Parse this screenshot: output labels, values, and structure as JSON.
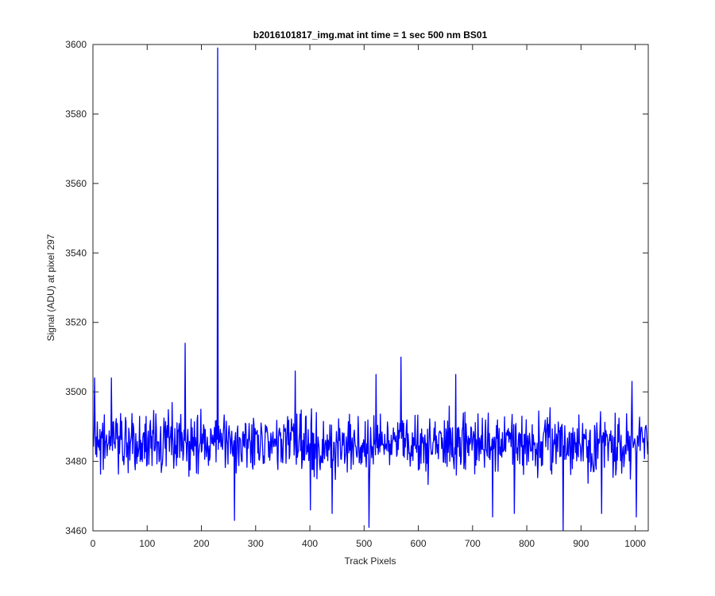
{
  "chart_data": {
    "type": "line",
    "title": "b2016101817_img.mat int time = 1 sec  500 nm BS01",
    "xlabel": "Track Pixels",
    "ylabel": "Signal (ADU) at pixel 297",
    "xlim": [
      0,
      1024
    ],
    "ylim": [
      3460,
      3600
    ],
    "xticks": [
      0,
      100,
      200,
      300,
      400,
      500,
      600,
      700,
      800,
      900,
      1000
    ],
    "yticks": [
      3460,
      3480,
      3500,
      3520,
      3540,
      3560,
      3580,
      3600
    ],
    "grid": false,
    "line_color": "#0000ff",
    "series": [
      {
        "base": 3485,
        "noise_amplitude": 8,
        "spikes": [
          {
            "x": 229,
            "y": 3599
          },
          {
            "x": 169,
            "y": 3514
          },
          {
            "x": 567,
            "y": 3510
          },
          {
            "x": 2,
            "y": 3504
          },
          {
            "x": 33,
            "y": 3504
          },
          {
            "x": 372,
            "y": 3506
          },
          {
            "x": 521,
            "y": 3505
          },
          {
            "x": 668,
            "y": 3505
          },
          {
            "x": 993,
            "y": 3503
          },
          {
            "x": 508,
            "y": 3461
          },
          {
            "x": 866,
            "y": 3460
          },
          {
            "x": 260,
            "y": 3463
          },
          {
            "x": 736,
            "y": 3464
          },
          {
            "x": 1001,
            "y": 3464
          },
          {
            "x": 440,
            "y": 3465
          },
          {
            "x": 937,
            "y": 3465
          },
          {
            "x": 400,
            "y": 3466
          },
          {
            "x": 776,
            "y": 3465
          }
        ]
      }
    ]
  }
}
